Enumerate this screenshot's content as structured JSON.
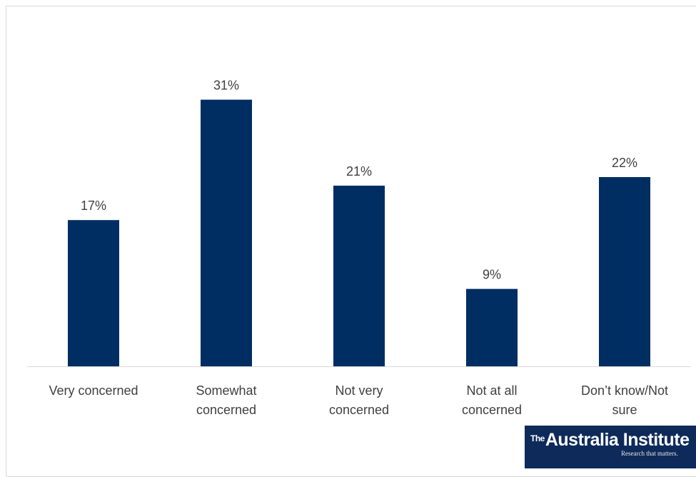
{
  "chart_data": {
    "type": "bar",
    "categories": [
      [
        "Very concerned"
      ],
      [
        "Somewhat",
        "concerned"
      ],
      [
        "Not very",
        "concerned"
      ],
      [
        "Not at all",
        "concerned"
      ],
      [
        "Don’t know/Not",
        "sure"
      ]
    ],
    "values": [
      17,
      31,
      21,
      9,
      22
    ],
    "data_labels": [
      "17%",
      "31%",
      "21%",
      "9%",
      "22%"
    ],
    "value_unit": "%",
    "ylim": [
      0,
      35
    ],
    "bar_color": "#002D62",
    "grid": false,
    "legend": "none",
    "title": "",
    "xlabel": "",
    "ylabel": ""
  },
  "logo": {
    "the": "The",
    "name": "Australia Institute",
    "tagline": "Research that matters."
  }
}
